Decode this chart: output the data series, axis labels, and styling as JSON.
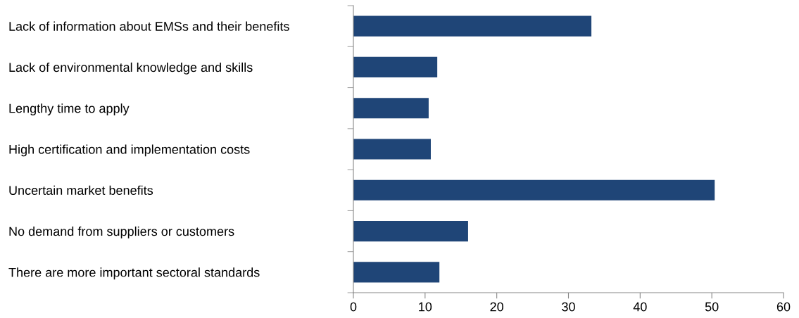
{
  "chart_data": {
    "type": "bar",
    "orientation": "horizontal",
    "categories": [
      "Lack of information about EMSs and their benefits",
      "Lack of environmental knowledge and skills",
      "Lengthy time to apply",
      "High certification and implementation costs",
      "Uncertain market benefits",
      "No demand from suppliers or customers",
      "There are more important sectoral standards"
    ],
    "values": [
      33.2,
      11.7,
      10.5,
      10.8,
      50.4,
      16.0,
      12.0
    ],
    "color": "#1f4577",
    "xlim": [
      0,
      60
    ],
    "xticks": [
      0,
      10,
      20,
      30,
      40,
      50,
      60
    ],
    "grid": false,
    "legend": false
  }
}
